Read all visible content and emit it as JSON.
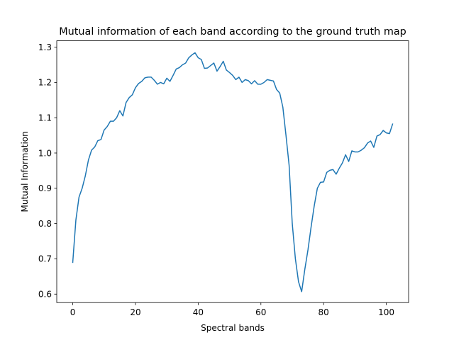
{
  "chart_data": {
    "type": "line",
    "title": "Mutual information of each band according to the ground truth map",
    "xlabel": "Spectral bands",
    "ylabel": "Mutual Information",
    "xlim": [
      -5.1,
      107.1
    ],
    "ylim": [
      0.576,
      1.318
    ],
    "xticks": [
      0,
      20,
      40,
      60,
      80,
      100
    ],
    "yticks": [
      0.6,
      0.7,
      0.8,
      0.9,
      1.0,
      1.1,
      1.2,
      1.3
    ],
    "ytick_labels": [
      "0.6",
      "0.7",
      "0.8",
      "0.9",
      "1.0",
      "1.1",
      "1.2",
      "1.3"
    ],
    "grid": false,
    "series": [
      {
        "name": "",
        "color": "#1f77b4",
        "x": [
          0,
          1,
          2,
          3,
          4,
          5,
          6,
          7,
          8,
          9,
          10,
          11,
          12,
          13,
          14,
          15,
          16,
          17,
          18,
          19,
          20,
          21,
          22,
          23,
          24,
          25,
          26,
          27,
          28,
          29,
          30,
          31,
          32,
          33,
          34,
          35,
          36,
          37,
          38,
          39,
          40,
          41,
          42,
          43,
          44,
          45,
          46,
          47,
          48,
          49,
          50,
          51,
          52,
          53,
          54,
          55,
          56,
          57,
          58,
          59,
          60,
          61,
          62,
          63,
          64,
          65,
          66,
          67,
          68,
          69,
          70,
          71,
          72,
          73,
          74,
          75,
          76,
          77,
          78,
          79,
          80,
          81,
          82,
          83,
          84,
          85,
          86,
          87,
          88,
          89,
          90,
          91,
          92,
          93,
          94,
          95,
          96,
          97,
          98,
          99,
          100,
          101,
          102
        ],
        "values": [
          0.69,
          0.81,
          0.875,
          0.9,
          0.935,
          0.98,
          1.008,
          1.017,
          1.035,
          1.038,
          1.065,
          1.075,
          1.09,
          1.09,
          1.1,
          1.12,
          1.105,
          1.143,
          1.157,
          1.165,
          1.185,
          1.197,
          1.203,
          1.213,
          1.215,
          1.215,
          1.206,
          1.195,
          1.2,
          1.196,
          1.212,
          1.203,
          1.22,
          1.238,
          1.242,
          1.25,
          1.255,
          1.27,
          1.278,
          1.284,
          1.27,
          1.265,
          1.24,
          1.241,
          1.248,
          1.255,
          1.232,
          1.245,
          1.26,
          1.235,
          1.228,
          1.22,
          1.208,
          1.215,
          1.2,
          1.208,
          1.205,
          1.196,
          1.205,
          1.195,
          1.195,
          1.2,
          1.208,
          1.206,
          1.204,
          1.18,
          1.17,
          1.13,
          1.05,
          0.965,
          0.8,
          0.7,
          0.635,
          0.607,
          0.67,
          0.725,
          0.79,
          0.85,
          0.9,
          0.917,
          0.918,
          0.945,
          0.951,
          0.953,
          0.94,
          0.957,
          0.972,
          0.995,
          0.976,
          1.006,
          1.003,
          1.003,
          1.008,
          1.015,
          1.028,
          1.034,
          1.016,
          1.048,
          1.052,
          1.064,
          1.057,
          1.055,
          1.082
        ]
      }
    ]
  }
}
